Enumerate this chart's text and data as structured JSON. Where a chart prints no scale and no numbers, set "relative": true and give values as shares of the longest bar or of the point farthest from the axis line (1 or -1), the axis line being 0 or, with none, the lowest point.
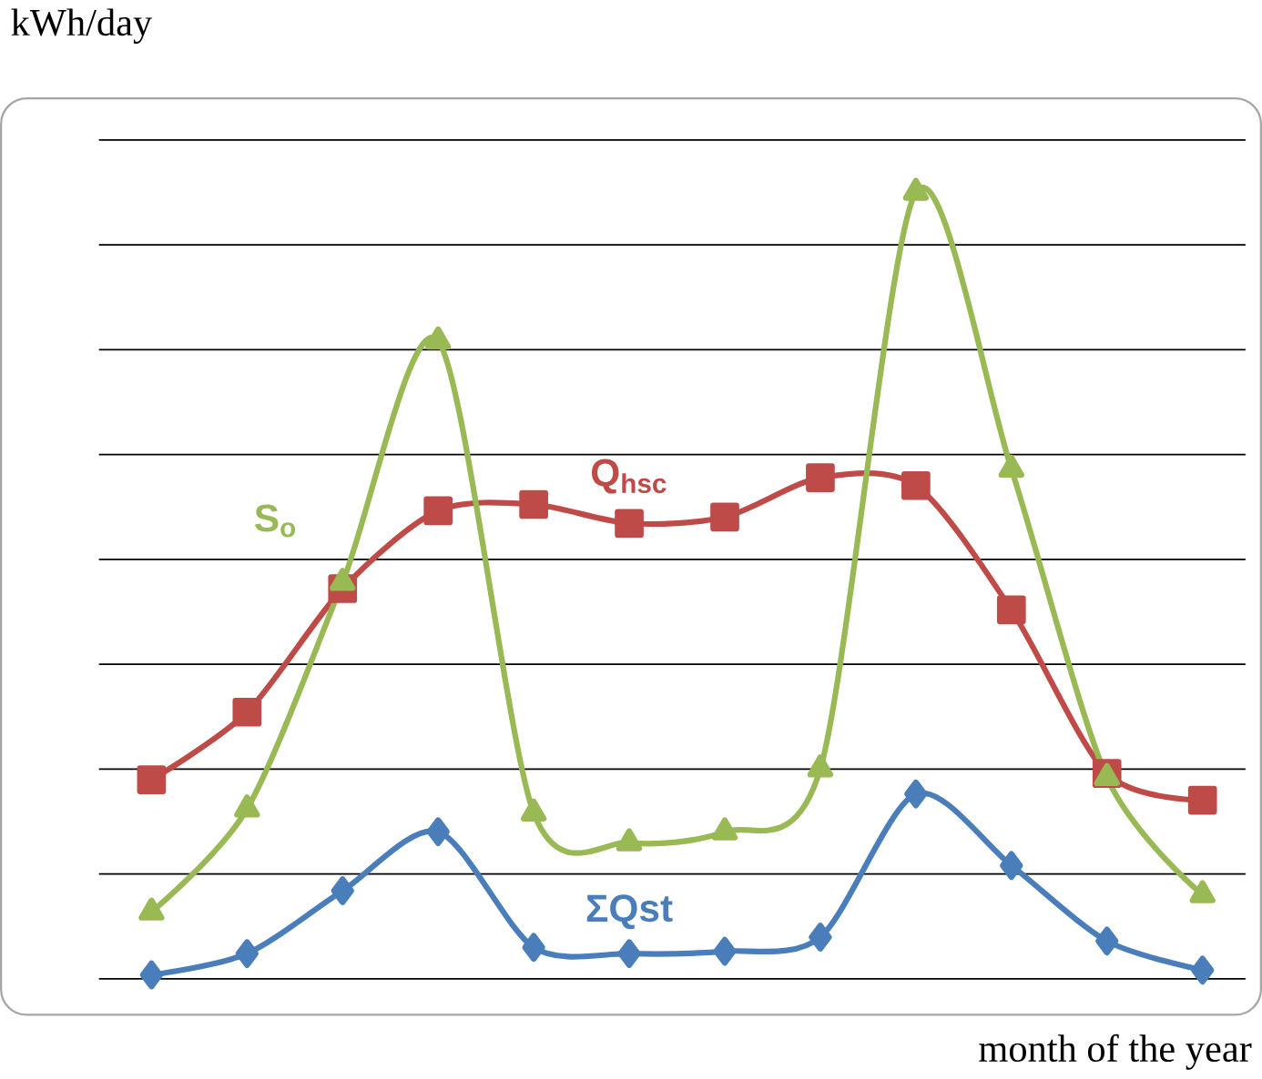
{
  "chart_data": {
    "type": "line",
    "relative": true,
    "xlabel": "month of the year",
    "ylabel": "kWh/day",
    "categories": [
      null,
      null,
      null,
      null,
      null,
      null,
      null,
      null,
      null,
      null,
      null,
      null
    ],
    "grid": "y",
    "tick_labels": false,
    "series": [
      {
        "name": "ΣQst",
        "color": "#4a7ebb",
        "marker": "diamond",
        "values": [
          0.005,
          0.032,
          0.112,
          0.187,
          0.04,
          0.032,
          0.035,
          0.053,
          0.235,
          0.144,
          0.048,
          0.011
        ]
      },
      {
        "name": "Q$_{hsc}$",
        "color": "#be4b48",
        "marker": "square",
        "values": [
          0.253,
          0.339,
          0.496,
          0.595,
          0.603,
          0.579,
          0.587,
          0.637,
          0.627,
          0.469,
          0.261,
          0.227
        ]
      },
      {
        "name": "S$_{o}$",
        "color": "#98b954",
        "marker": "triangle",
        "values": [
          0.085,
          0.216,
          0.504,
          0.811,
          0.211,
          0.173,
          0.187,
          0.267,
          1.0,
          0.648,
          0.256,
          0.107
        ]
      }
    ]
  }
}
